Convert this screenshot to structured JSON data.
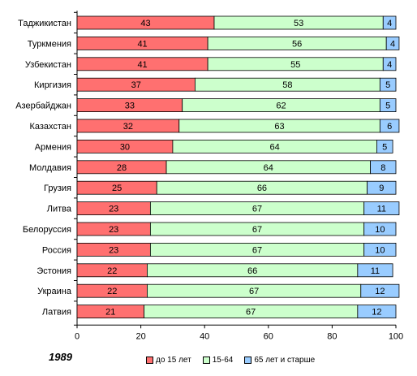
{
  "chart_data": {
    "type": "bar",
    "stacked": true,
    "orientation": "horizontal",
    "year": "1989",
    "categories": [
      "Таджикистан",
      "Туркмения",
      "Узбекистан",
      "Киргизия",
      "Азербайджан",
      "Казахстан",
      "Армения",
      "Молдавия",
      "Грузия",
      "Литва",
      "Белоруссия",
      "Россия",
      "Эстония",
      "Украина",
      "Латвия"
    ],
    "series": [
      {
        "name": "до 15 лет",
        "color": "#ff7070",
        "values": [
          43,
          41,
          41,
          37,
          33,
          32,
          30,
          28,
          25,
          23,
          23,
          23,
          22,
          22,
          21
        ]
      },
      {
        "name": "15-64",
        "color": "#ccffcc",
        "values": [
          53,
          56,
          55,
          58,
          62,
          63,
          64,
          64,
          66,
          67,
          67,
          67,
          66,
          67,
          67
        ]
      },
      {
        "name": "65 лет и старше",
        "color": "#99ccff",
        "values": [
          4,
          4,
          4,
          5,
          5,
          6,
          5,
          8,
          9,
          11,
          10,
          10,
          11,
          12,
          12
        ]
      }
    ],
    "xlim": [
      0,
      100
    ],
    "xticks": [
      "0",
      "20",
      "40",
      "60",
      "80",
      "100"
    ],
    "grid": false,
    "legend_position": "bottom"
  }
}
